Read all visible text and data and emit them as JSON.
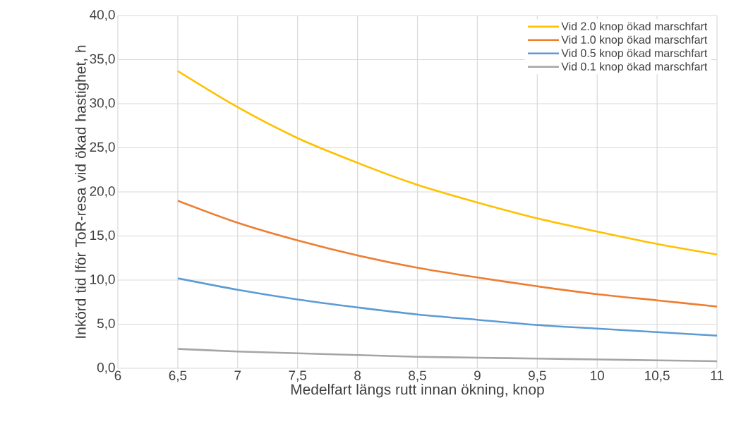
{
  "chart_data": {
    "type": "line",
    "xlabel": "Medelfart längs rutt innan ökning, knop",
    "ylabel": "Inkörd tid lför ToR-resa vid ökad hastighet, h",
    "x": [
      6.5,
      7,
      7.5,
      8,
      8.5,
      9,
      9.5,
      10,
      10.5,
      11
    ],
    "series": [
      {
        "name": "Vid 2.0 knop ökad marschfart",
        "color": "#ffc000",
        "values": [
          33.7,
          29.6,
          26.1,
          23.3,
          20.8,
          18.8,
          17.0,
          15.5,
          14.1,
          12.9
        ]
      },
      {
        "name": "Vid 1.0 knop ökad marschfart",
        "color": "#ed7d31",
        "values": [
          19.0,
          16.5,
          14.5,
          12.8,
          11.4,
          10.3,
          9.3,
          8.4,
          7.7,
          7.0
        ]
      },
      {
        "name": "Vid 0.5 knop ökad marschfart",
        "color": "#5b9bd5",
        "values": [
          10.2,
          8.9,
          7.8,
          6.9,
          6.1,
          5.5,
          4.9,
          4.5,
          4.1,
          3.7
        ]
      },
      {
        "name": "Vid 0.1 knop ökad marschfart",
        "color": "#a5a5a5",
        "values": [
          2.2,
          1.9,
          1.7,
          1.5,
          1.3,
          1.2,
          1.1,
          1.0,
          0.9,
          0.8
        ]
      }
    ],
    "xlim": [
      6,
      11
    ],
    "ylim": [
      0,
      40
    ],
    "xticks": [
      6,
      {
        "value": 6.5,
        "label": "6,5"
      },
      7,
      {
        "value": 7.5,
        "label": "7,5"
      },
      8,
      {
        "value": 8.5,
        "label": "8,5"
      },
      9,
      {
        "value": 9.5,
        "label": "9,5"
      },
      10,
      {
        "value": 10.5,
        "label": "10,5"
      },
      11
    ],
    "yticks": [
      {
        "value": 0,
        "label": "0,0"
      },
      {
        "value": 5,
        "label": "5,0"
      },
      {
        "value": 10,
        "label": "10,0"
      },
      {
        "value": 15,
        "label": "15,0"
      },
      {
        "value": 20,
        "label": "20,0"
      },
      {
        "value": 25,
        "label": "25,0"
      },
      {
        "value": 30,
        "label": "30,0"
      },
      {
        "value": 35,
        "label": "35,0"
      },
      {
        "value": 40,
        "label": "40,0"
      }
    ],
    "grid": true,
    "legend": "top right",
    "marker": "none",
    "line_style": "solid"
  }
}
